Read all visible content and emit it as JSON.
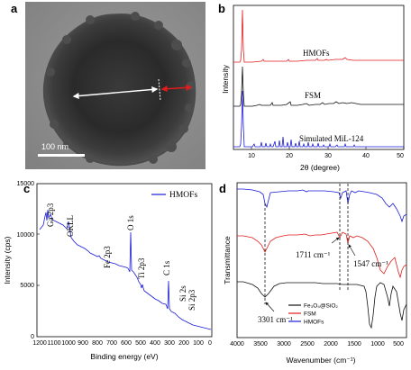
{
  "colors": {
    "red": "#e11c1c",
    "blue": "#1a1ad6",
    "black": "#111111",
    "tem_bg": "#8d8d8d"
  },
  "panel_a": {
    "label": "a",
    "scale_bar": "100 nm",
    "arrows": [
      {
        "name": "core-diameter-arrow",
        "color": "white"
      },
      {
        "name": "shell-thickness-arrow",
        "color": "red"
      }
    ]
  },
  "panels": {
    "b": {
      "label": "b",
      "xlabel": "2θ (degree)",
      "ylabel": "Intensity",
      "xticks": [
        "10",
        "20",
        "30",
        "40",
        "50"
      ],
      "xlim": [
        5,
        50
      ],
      "curve_labels": [
        "HMOFs",
        "FSM",
        "Simulated MiL-124"
      ]
    },
    "c": {
      "label": "c",
      "xlabel": "Binding energy (eV)",
      "ylabel": "Intensity (cps)",
      "xticks": [
        "1200",
        "1100",
        "1000",
        "900",
        "800",
        "700",
        "600",
        "500",
        "400",
        "300",
        "200",
        "100",
        "0"
      ],
      "yticks": [
        "0",
        "5000",
        "10000",
        "15000"
      ],
      "xlim": [
        1200,
        0
      ],
      "ylim": [
        0,
        15000
      ],
      "legend": "HMOFs",
      "peak_labels": [
        "Ga 2p3",
        "OKLL",
        "Fe 2p3",
        "O 1s",
        "Ti 2p3",
        "C 1s",
        "Si 2s",
        "Si 2p3"
      ]
    },
    "d": {
      "label": "d",
      "xlabel": "Wavenumber (cm⁻¹)",
      "ylabel": "Transmittance",
      "xticks": [
        "4000",
        "3500",
        "3000",
        "2500",
        "2000",
        "1500",
        "1000",
        "500"
      ],
      "xlim": [
        4000,
        400
      ],
      "annotations": [
        "3301 cm⁻¹",
        "1711 cm⁻¹",
        "1547 cm⁻¹"
      ],
      "legend_items": [
        {
          "text": "Fe₃O₄@SiO₂",
          "color": "#111111"
        },
        {
          "text": "FSM",
          "color": "#e11c1c"
        },
        {
          "text": "HMOFs",
          "color": "#1a1ad6"
        }
      ]
    }
  }
}
